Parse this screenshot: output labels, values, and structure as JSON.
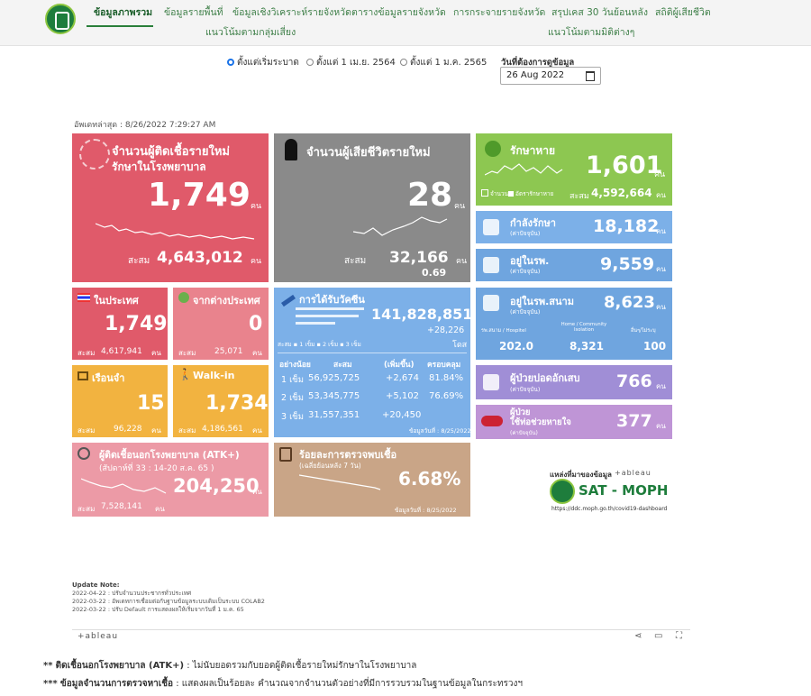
{
  "nav": {
    "items": [
      "ข้อมูลภาพรวม",
      "ข้อมูลรายพื้นที่",
      "ข้อมูลเชิงวิเคราะห์รายจังหวัด",
      "ตารางข้อมูลรายจังหวัด",
      "การกระจายรายจังหวัด",
      "สรุปเคส 30 วันย้อนหลัง",
      "สถิติผู้เสียชีวิต"
    ],
    "row2": [
      "แนวโน้มตามกลุ่มเสี่ยง",
      "แนวโน้มตามมิติต่างๆ"
    ]
  },
  "filter": {
    "options": [
      "ตั้งแต่เริ่มระบาด",
      "ตั้งแต่ 1 เม.ย. 2564",
      "ตั้งแต่ 1 ม.ค. 2565"
    ],
    "selected_index": 0,
    "date_label": "วันที่ต้องการดูข้อมูล",
    "date_value": "26 Aug 2022"
  },
  "updated": "อัพเดทล่าสุด : 8/26/2022 7:29:27 AM",
  "cards": {
    "new_cases": {
      "title1": "จำนวนผู้ติดเชื้อรายใหม่",
      "title2": "รักษาในโรงพยาบาล",
      "value": "1,749",
      "unit": "คน",
      "cum_label": "สะสม",
      "cum": "4,643,012",
      "cum_unit": "คน"
    },
    "deaths": {
      "title": "จำนวนผู้เสียชีวิตรายใหม่",
      "value": "28",
      "unit": "คน",
      "cum_label": "สะสม",
      "cum": "32,166",
      "cum_unit": "คน",
      "rate": "0.69"
    },
    "recovered": {
      "title": "รักษาหาย",
      "value": "1,601",
      "unit": "คน",
      "legend1": "จำนวน",
      "legend2": "อัตรารักษาหาย",
      "cum_label": "สะสม",
      "cum": "4,592,664",
      "cum_unit": "คน"
    },
    "treating": {
      "title": "กำลังรักษา",
      "sub": "(ค่าปัจจุบัน)",
      "value": "18,182",
      "unit": "คน"
    },
    "in_hospital": {
      "title": "อยู่ในรพ.",
      "sub": "(ค่าปัจจุบัน)",
      "value": "9,559",
      "unit": "คน"
    },
    "domestic": {
      "title": "ในประเทศ",
      "value": "1,749",
      "unit": "คน",
      "cum_label": "สะสม",
      "cum": "4,617,941",
      "cum_unit": "คน"
    },
    "abroad": {
      "title": "จากต่างประเทศ",
      "value": "0",
      "unit": "คน",
      "cum_label": "สะสม",
      "cum": "25,071",
      "cum_unit": "คน"
    },
    "prison": {
      "title": "เรือนจำ",
      "value": "15",
      "unit": "คน",
      "cum_label": "สะสม",
      "cum": "96,228",
      "cum_unit": "คน"
    },
    "walkin": {
      "title": "Walk-in",
      "value": "1,734",
      "unit": "คน",
      "cum_label": "สะสม",
      "cum": "4,186,561",
      "cum_unit": "คน"
    },
    "vaccine": {
      "title": "การได้รับวัคซีน",
      "total": "141,828,851",
      "increase": "+28,226",
      "dose_unit": "โดส",
      "legend": [
        "1 เข็ม",
        "2 เข็ม",
        "3 เข็ม"
      ],
      "legend_prefix": "สะสม",
      "headers": [
        "อย่างน้อย",
        "สะสม",
        "(เพิ่มขึ้น)",
        "ครอบคลุม"
      ],
      "rows": [
        {
          "dose": "1 เข็ม",
          "cum": "56,925,725",
          "inc": "+2,674",
          "cov": "81.84%"
        },
        {
          "dose": "2 เข็ม",
          "cum": "53,345,775",
          "inc": "+5,102",
          "cov": "76.69%"
        },
        {
          "dose": "3 เข็ม",
          "cum": "31,557,351",
          "inc": "+20,450",
          "cov": ""
        }
      ],
      "data_date": "ข้อมูลวันที่ : 8/25/2022"
    },
    "field_hospital": {
      "title": "อยู่ในรพ.สนาม",
      "sub": "(ค่าปัจจุบัน)",
      "value": "8,623",
      "unit": "คน",
      "col1": "รพ.สนาม / Hospitel",
      "col2": "Home / Community Isolation",
      "col3": "อื่นๆ/ไม่ระบุ",
      "v1": "202.0",
      "v2": "8,321",
      "v3": "100"
    },
    "pneumonia": {
      "title": "ผู้ป่วยปอดอักเสบ",
      "sub": "(ค่าปัจจุบัน)",
      "value": "766",
      "unit": "คน"
    },
    "ventilator": {
      "title1": "ผู้ป่วย",
      "title2": "ใช้ท่อช่วยหายใจ",
      "sub": "(ค่าปัจจุบัน)",
      "value": "377",
      "unit": "คน"
    },
    "atk": {
      "title": "ผู้ติดเชื้อนอกโรงพยาบาล (ATK+)",
      "sub": "(สัปดาห์ที่  33 : 14-20 ส.ค. 65     )",
      "value": "204,250",
      "unit": "คน",
      "cum_label": "สะสม",
      "cum": "7,528,141",
      "cum_unit": "คน"
    },
    "positivity": {
      "title": "ร้อยละการตรวจพบเชื้อ",
      "sub": "(เฉลี่ยย้อนหลัง 7 วัน)",
      "value": "6.68%",
      "data_date": "ข้อมูลวันที่ : 8/25/2022"
    }
  },
  "source": {
    "label": "แหล่งที่มาของข้อมูล",
    "tableau": "+ableau",
    "brand": "SAT - MOPH",
    "url": "https://ddc.moph.go.th/covid19-dashboard"
  },
  "notes": {
    "title": "Update Note:",
    "lines": [
      "2022-04-22 : ปรับจำนวนประชากรทั่วประเทศ",
      "2022-03-22 : อัพเดทการเชื่อมต่อกับฐานข้อมูลระบบเดิมเป็นระบบ COLAB2",
      "2022-03-22 : ปรับ Default การแสดงผลให้เริ่มจากวันที่ 1 ม.ค. 65"
    ]
  },
  "tableau_bar": "+ableau",
  "bottom": [
    {
      "mark": "**",
      "bold": "ติดเชื้อนอกโรงพยาบาล (ATK+)",
      "rest": " : ไม่นับยอดรวมกับยอดผู้ติดเชื้อรายใหม่รักษาในโรงพยาบาล"
    },
    {
      "mark": "***",
      "bold": "ข้อมูลจำนวนการตรวจหาเชื้อ",
      "rest": " : แสดงผลเป็นร้อยละ คำนวณจากจำนวนตัวอย่างที่มีการรวบรวมในฐานข้อมูลในกระทรวงฯ"
    }
  ]
}
